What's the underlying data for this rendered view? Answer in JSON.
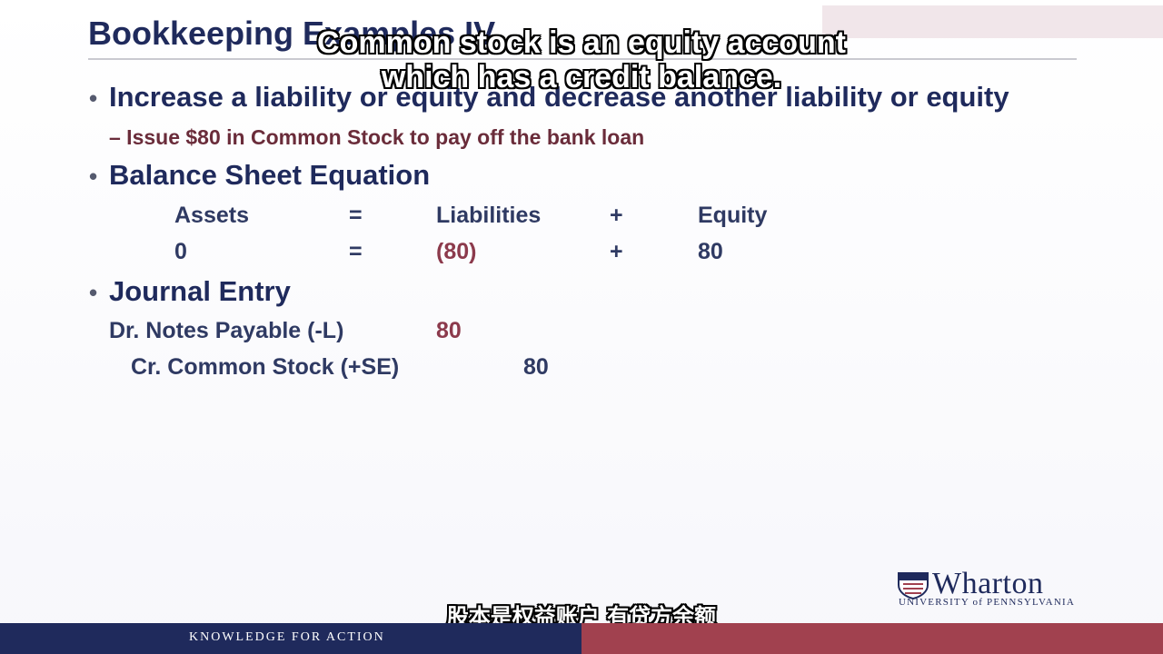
{
  "slide": {
    "title": "Bookkeeping Examples IV",
    "bullets": [
      {
        "text": "Increase a liability or equity and decrease another liability or equity"
      },
      {
        "text": "Balance Sheet Equation"
      },
      {
        "text": "Journal Entry"
      }
    ],
    "sub_bullet": "– Issue $80 in Common Stock to pay off the bank loan",
    "equation": {
      "headers": [
        "Assets",
        "=",
        "Liabilities",
        "+",
        "Equity"
      ],
      "values": [
        "0",
        "=",
        "(80)",
        "+",
        "80"
      ]
    },
    "journal": {
      "debit": {
        "label": "Dr. Notes Payable (-L)",
        "amount": "80"
      },
      "credit": {
        "label": "Cr. Common Stock (+SE)",
        "amount": "80"
      }
    },
    "bullet_glyph": "•"
  },
  "subtitles": {
    "english_line1": "Common stock is an equity account",
    "english_line2": "which has a credit balance.",
    "chinese": "股本是权益账户 有贷方余额"
  },
  "branding": {
    "logo_word": "Wharton",
    "logo_university": "UNIVERSITY of PENNSYLVANIA",
    "footer_text": "KNOWLEDGE FOR ACTION",
    "colors": {
      "navy": "#1f2a5c",
      "maroon": "#a1414f"
    }
  }
}
